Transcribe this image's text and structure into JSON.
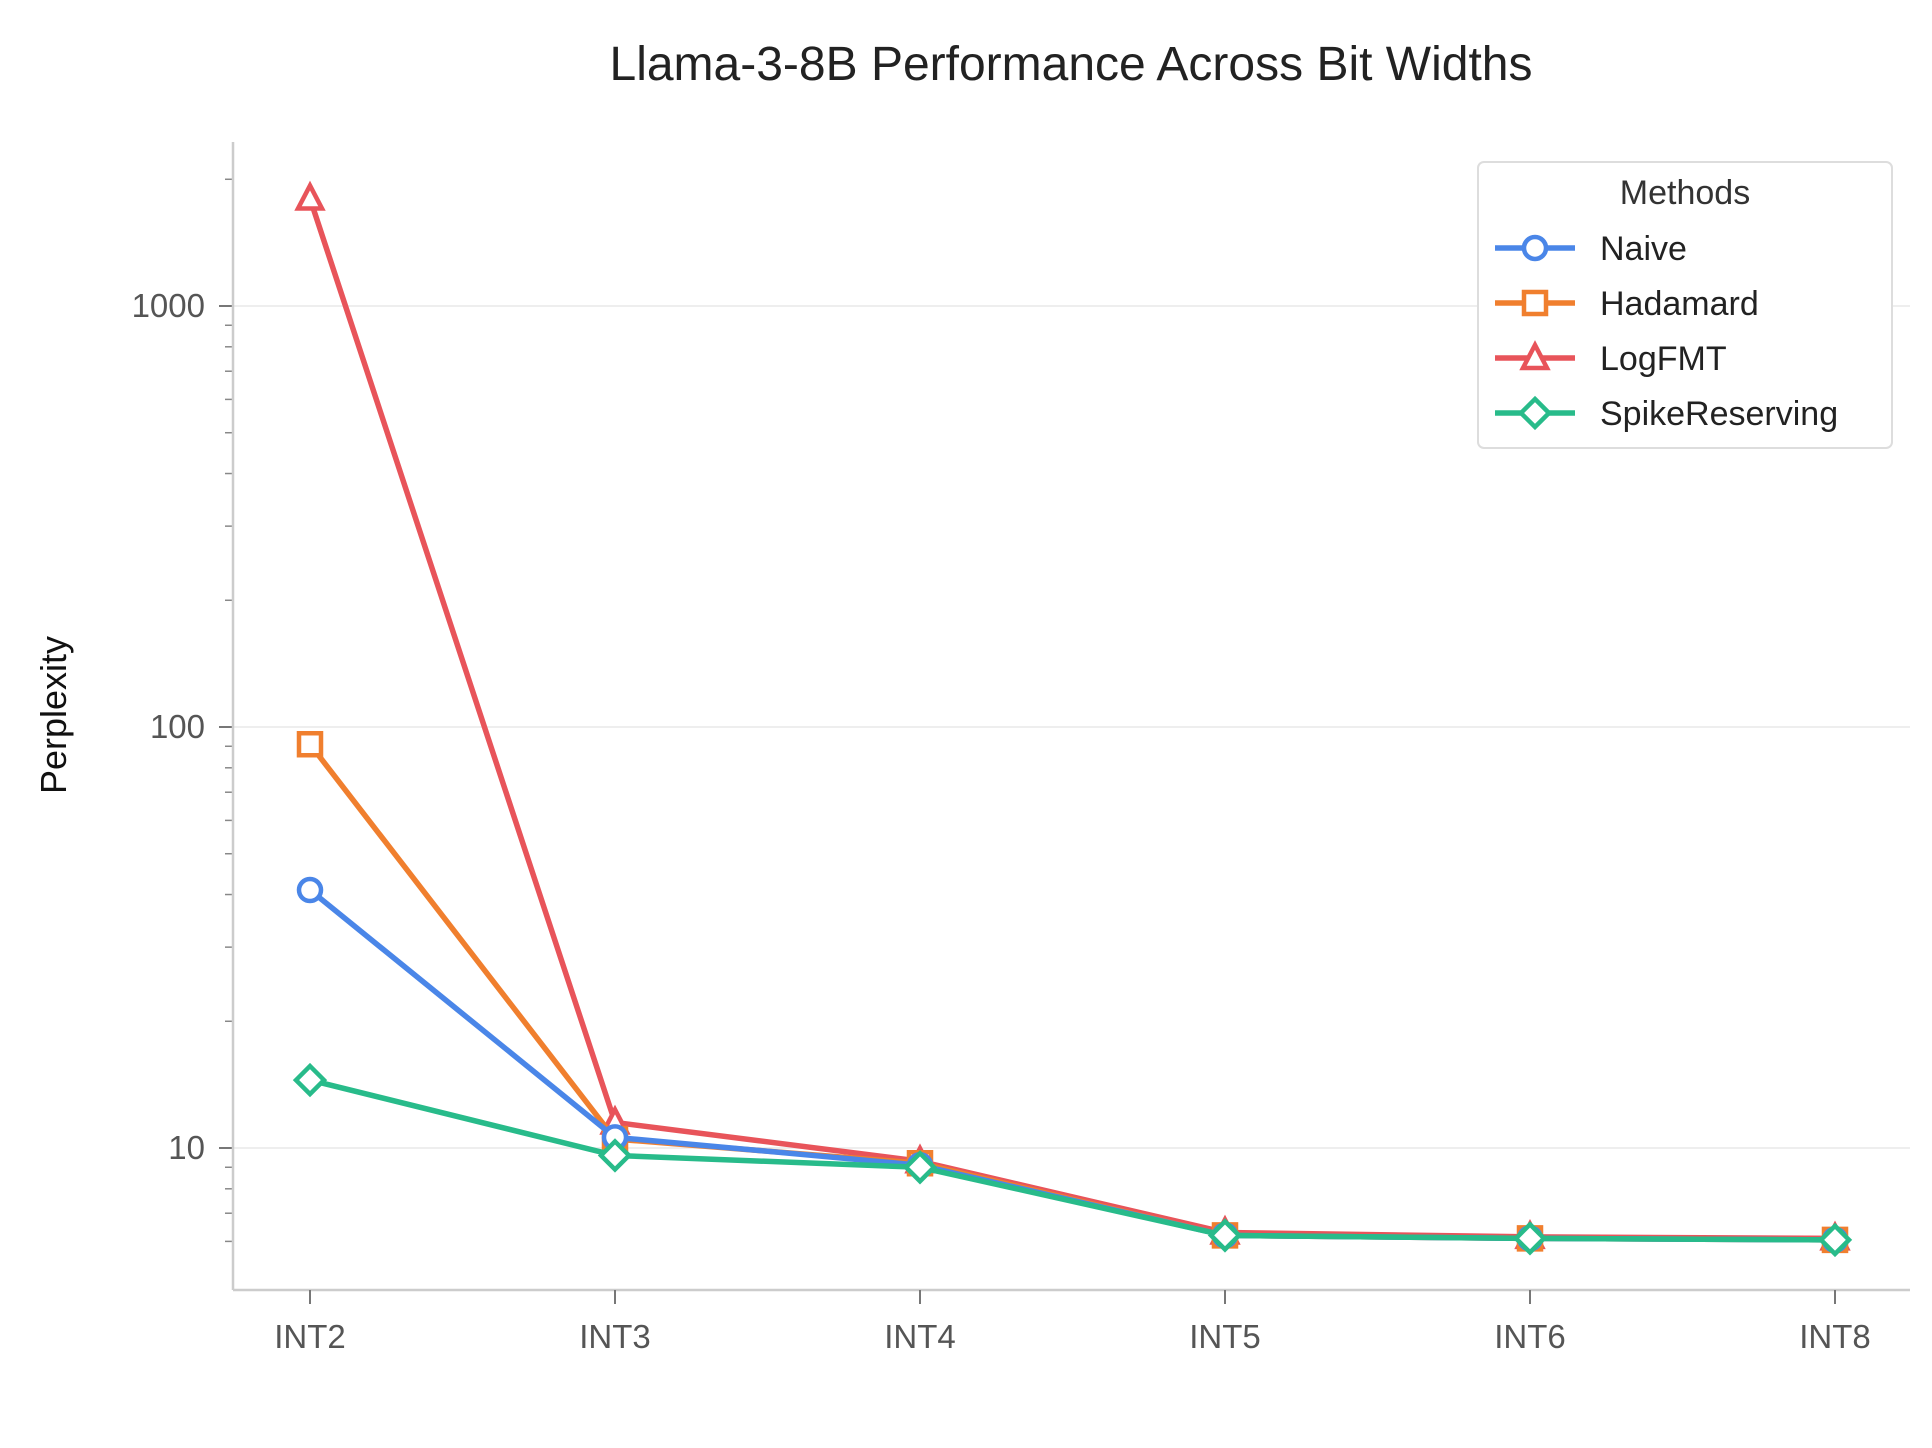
{
  "chart_data": {
    "type": "line",
    "title": "Llama-3-8B Performance Across Bit Widths",
    "xlabel": "",
    "ylabel": "Perplexity",
    "categories": [
      "INT2",
      "INT3",
      "INT4",
      "INT5",
      "INT6",
      "INT8"
    ],
    "y_scale": "log",
    "ylim": [
      5.5,
      2500
    ],
    "y_ticks": [
      {
        "value": 10,
        "label": "10"
      },
      {
        "value": 100,
        "label": "100"
      },
      {
        "value": 1000,
        "label": "1000"
      }
    ],
    "grid": true,
    "legend": {
      "title": "Methods",
      "placement": "top-right"
    },
    "series": [
      {
        "name": "Naive",
        "color": "#4A86E8",
        "marker": "circle",
        "values": [
          41,
          10.6,
          9.1,
          6.2,
          6.1,
          6.05
        ]
      },
      {
        "name": "Hadamard",
        "color": "#F07F2E",
        "marker": "square",
        "values": [
          91,
          10.5,
          9.2,
          6.2,
          6.1,
          6.05
        ]
      },
      {
        "name": "LogFMT",
        "color": "#E8545A",
        "marker": "triangle",
        "values": [
          1800,
          11.5,
          9.3,
          6.3,
          6.15,
          6.1
        ]
      },
      {
        "name": "SpikeReserving",
        "color": "#28BB8A",
        "marker": "diamond",
        "values": [
          14.5,
          9.6,
          9.0,
          6.2,
          6.1,
          6.05
        ]
      }
    ]
  }
}
